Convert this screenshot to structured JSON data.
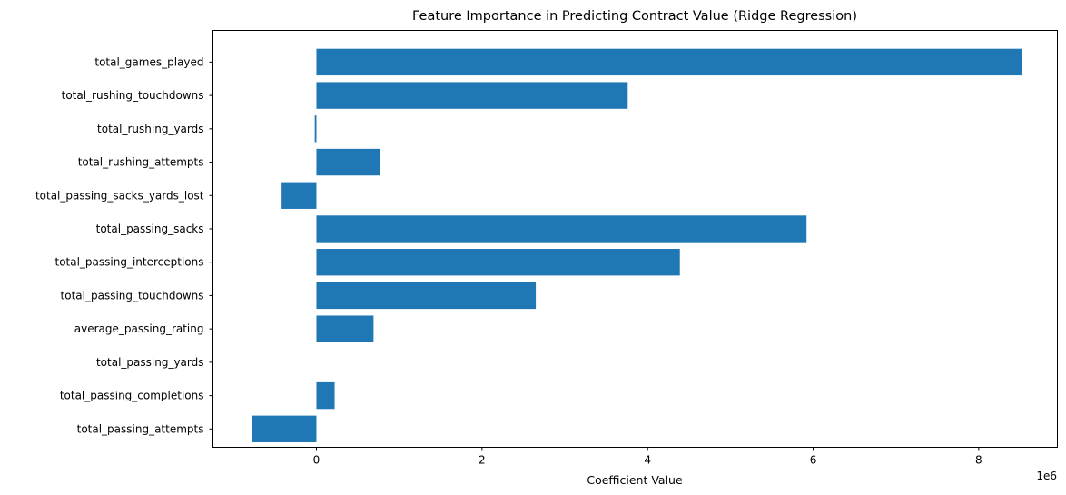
{
  "chart_data": {
    "type": "bar",
    "orientation": "horizontal",
    "title": "Feature Importance in Predicting Contract Value (Ridge Regression)",
    "xlabel": "Coefficient Value",
    "ylabel": "",
    "offset_text": "1e6",
    "xlim": [
      -1.25,
      8.95
    ],
    "xticks": [
      0,
      2,
      4,
      6,
      8
    ],
    "scale_multiplier": 1000000,
    "bar_color": "#1f77b4",
    "grid": false,
    "categories": [
      "total_games_played",
      "total_rushing_touchdowns",
      "total_rushing_yards",
      "total_rushing_attempts",
      "total_passing_sacks_yards_lost",
      "total_passing_sacks",
      "total_passing_interceptions",
      "total_passing_touchdowns",
      "average_passing_rating",
      "total_passing_yards",
      "total_passing_completions",
      "total_passing_attempts"
    ],
    "values": [
      8.52,
      3.76,
      -0.02,
      0.77,
      -0.42,
      5.92,
      4.39,
      2.65,
      0.69,
      0.0,
      0.22,
      -0.78
    ]
  }
}
